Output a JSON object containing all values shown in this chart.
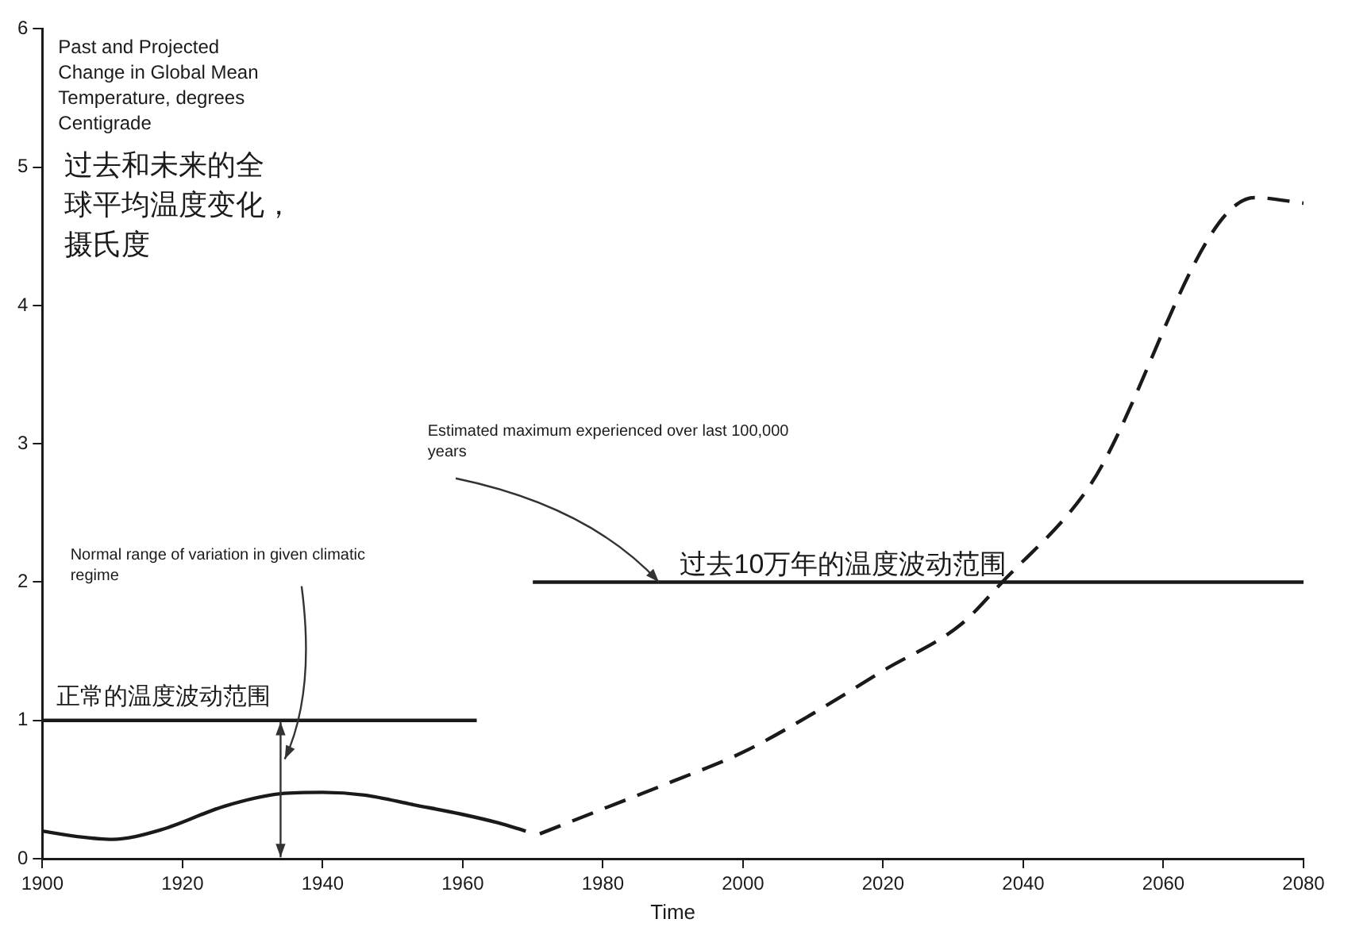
{
  "chart_data": {
    "type": "line",
    "title": "Past and Projected Change in Global Mean Temperature, degrees Centigrade",
    "subtitle": "过去和未来的全球平均温度变化，摄氏度",
    "xlabel": "Time",
    "xlim": [
      1900,
      2080
    ],
    "xticks": [
      1900,
      1920,
      1940,
      1960,
      1980,
      2000,
      2020,
      2040,
      2060,
      2080
    ],
    "ylim": [
      0,
      6
    ],
    "yticks": [
      0,
      1,
      2,
      3,
      4,
      5,
      6
    ],
    "grid": false,
    "legend": false,
    "marker": "none",
    "series": [
      {
        "color": "#1a1a1a",
        "line_style": "solid",
        "x": [
          1900,
          1905,
          1910,
          1917,
          1926,
          1934,
          1940,
          1946,
          1953,
          1960,
          1965,
          1969
        ],
        "values": [
          0.2,
          0.16,
          0.14,
          0.21,
          0.38,
          0.47,
          0.48,
          0.46,
          0.39,
          0.32,
          0.26,
          0.2
        ]
      },
      {
        "color": "#1a1a1a",
        "line_style": "dashed",
        "x": [
          1971,
          1980,
          1990,
          2000,
          2010,
          2020,
          2031,
          2037,
          2049,
          2073,
          2080
        ],
        "values": [
          0.18,
          0.36,
          0.56,
          0.77,
          1.05,
          1.36,
          1.69,
          2.0,
          2.66,
          4.78,
          4.74
        ]
      },
      {
        "color": "#1a1a1a",
        "line_style": "solid",
        "x": [
          1900,
          1962
        ],
        "values": [
          1,
          1
        ]
      },
      {
        "color": "#1a1a1a",
        "line_style": "solid",
        "x": [
          1970,
          2080
        ],
        "values": [
          2,
          2
        ]
      }
    ],
    "annotations": [
      "Normal range of variation in given climatic regime",
      "正常的温度波动范围",
      {
        "text": "Estimated maximum experienced over last 100,000 years",
        "x": 1988,
        "y": 2
      },
      "过去10万年的温度波动范围"
    ]
  }
}
